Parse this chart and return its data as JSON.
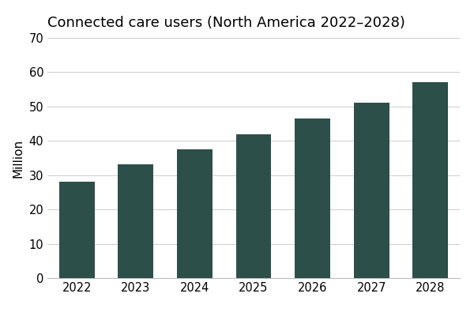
{
  "title": "Connected care users (North America 2022–2028)",
  "years": [
    2022,
    2023,
    2024,
    2025,
    2026,
    2027,
    2028
  ],
  "values": [
    28.2,
    33.2,
    37.5,
    42.0,
    46.5,
    51.2,
    57.0
  ],
  "bar_color": "#2d4f4a",
  "ylabel": "Million",
  "ylim": [
    0,
    70
  ],
  "yticks": [
    0,
    10,
    20,
    30,
    40,
    50,
    60,
    70
  ],
  "background_color": "#ffffff",
  "title_fontsize": 13,
  "label_fontsize": 11,
  "tick_fontsize": 10.5
}
